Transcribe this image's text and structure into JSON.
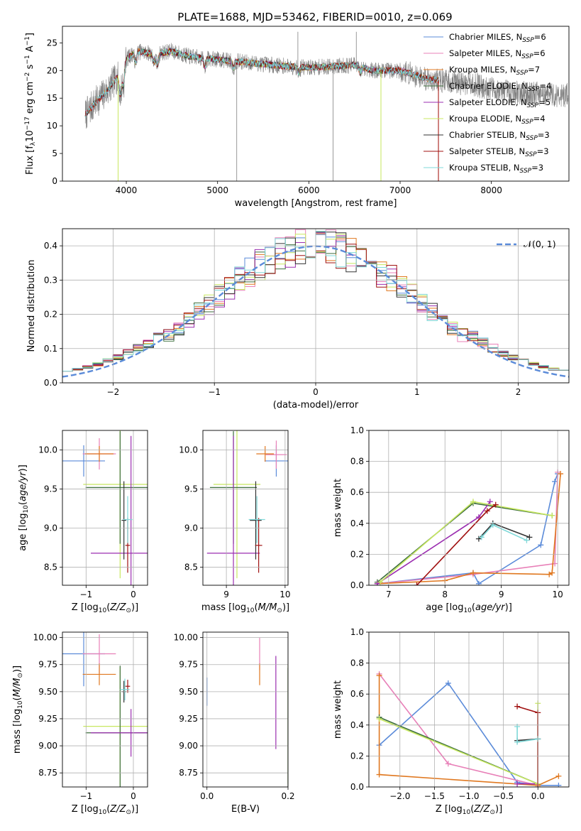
{
  "figure_title": "PLATE=1688, MJD=53462, FIBERID=0010, z=0.069",
  "colors": {
    "chabrier_miles": "#5b8bd9",
    "salpeter_miles": "#e880b8",
    "kroupa_miles": "#e07820",
    "chabrier_elodie": "#3d6e3d",
    "salpeter_elodie": "#9b2eb0",
    "kroupa_elodie": "#c8e860",
    "chabrier_stelib": "#333333",
    "salpeter_stelib": "#a01010",
    "kroupa_stelib": "#7fd8d8",
    "data": "#808080",
    "gaussian": "#5b8bd9"
  },
  "chart_data": [
    {
      "id": "spectrum",
      "type": "line",
      "title": "PLATE=1688, MJD=53462, FIBERID=0010, z=0.069",
      "xlabel": "wavelength [Angstrom, rest frame]",
      "ylabel": "Flux [f_λ 10^-17 erg cm^-2 s^-1 A^-1]",
      "xlim": [
        3300,
        8850
      ],
      "ylim": [
        0,
        28
      ],
      "xticks": [
        4000,
        5000,
        6000,
        7000,
        8000
      ],
      "yticks": [
        0,
        5,
        10,
        15,
        20,
        25
      ],
      "legend_position": "top-right",
      "legend": [
        {
          "label": "Chabrier MILES, N",
          "sub": "SSP",
          "value": "=6"
        },
        {
          "label": "Salpeter MILES, N",
          "sub": "SSP",
          "value": "=6"
        },
        {
          "label": "Kroupa MILES, N",
          "sub": "SSP",
          "value": "=7"
        },
        {
          "label": "Chabrier ELODIE, N",
          "sub": "SSP",
          "value": "=4"
        },
        {
          "label": "Salpeter ELODIE, N",
          "sub": "SSP",
          "value": "=5"
        },
        {
          "label": "Kroupa ELODIE, N",
          "sub": "SSP",
          "value": "=4"
        },
        {
          "label": "Chabrier STELIB, N",
          "sub": "SSP",
          "value": "=3"
        },
        {
          "label": "Salpeter STELIB, N",
          "sub": "SSP",
          "value": "=3"
        },
        {
          "label": "Kroupa STELIB, N",
          "sub": "SSP",
          "value": "=3"
        }
      ],
      "continuum_points": [
        [
          3550,
          12
        ],
        [
          3650,
          14
        ],
        [
          3800,
          16.5
        ],
        [
          3950,
          20
        ],
        [
          4000,
          22
        ],
        [
          4100,
          23.5
        ],
        [
          4300,
          23
        ],
        [
          4500,
          23.5
        ],
        [
          4700,
          22.5
        ],
        [
          5000,
          22
        ],
        [
          5300,
          21.5
        ],
        [
          5600,
          21
        ],
        [
          6000,
          20.5
        ],
        [
          6500,
          21
        ],
        [
          6700,
          20
        ],
        [
          7000,
          20
        ],
        [
          7300,
          18.5
        ],
        [
          7800,
          17.5
        ],
        [
          8200,
          16
        ],
        [
          8850,
          15.5
        ]
      ]
    },
    {
      "id": "residuals",
      "type": "line",
      "xlabel": "(data-model)/error",
      "ylabel": "Normed distribution",
      "xlim": [
        -2.5,
        2.5
      ],
      "ylim": [
        0,
        0.45
      ],
      "xticks": [
        -2,
        -1,
        0,
        1,
        2
      ],
      "yticks": [
        0.0,
        0.1,
        0.2,
        0.3,
        0.4
      ],
      "legend_position": "top-right",
      "legend": [
        {
          "label": "𝒩(0, 1)"
        }
      ],
      "grid": true
    },
    {
      "id": "age_vs_Z",
      "type": "scatter",
      "xlabel": "Z [log10(Z/Z⊙)]",
      "ylabel": "age [log10(age/yr)]",
      "xlim": [
        -1.5,
        0.3
      ],
      "ylim": [
        8.27,
        10.25
      ],
      "xticks": [
        -1,
        0
      ],
      "yticks": [
        8.5,
        9.0,
        9.5,
        10.0
      ],
      "grid": true,
      "points": [
        {
          "key": "chabrier_miles",
          "x": -1.05,
          "xerr": 0.45,
          "y": 9.86,
          "yerr": 0.2
        },
        {
          "key": "salpeter_miles",
          "x": -0.72,
          "xerr": 0.35,
          "y": 9.95,
          "yerr": 0.2
        },
        {
          "key": "kroupa_miles",
          "x": -0.72,
          "xerr": 0.3,
          "y": 9.95,
          "yerr": 0.1
        },
        {
          "key": "kroupa_elodie",
          "x": -0.28,
          "xerr": 0.78,
          "y": 9.56,
          "yerr": 1.2
        },
        {
          "key": "chabrier_elodie",
          "x": -0.28,
          "xerr": 0.73,
          "y": 9.52,
          "yerr": 0.72
        },
        {
          "key": "salpeter_elodie",
          "x": -0.05,
          "xerr": 0.85,
          "y": 8.68,
          "yerr": 1.5
        },
        {
          "key": "chabrier_stelib",
          "x": -0.2,
          "xerr": 0.05,
          "y": 9.1,
          "yerr": 0.5
        },
        {
          "key": "salpeter_stelib",
          "x": -0.12,
          "xerr": 0.05,
          "y": 8.78,
          "yerr": 0.35
        },
        {
          "key": "kroupa_stelib",
          "x": -0.12,
          "xerr": 0.1,
          "y": 9.11,
          "yerr": 0.3
        }
      ]
    },
    {
      "id": "age_vs_mass",
      "type": "scatter",
      "xlabel": "mass [log10(M/M⊙)]",
      "ylabel": "",
      "xlim": [
        8.6,
        10.05
      ],
      "ylim": [
        8.27,
        10.25
      ],
      "xticks": [
        9,
        10
      ],
      "yticks": [
        8.5,
        9.0,
        9.5,
        10.0
      ],
      "grid": true,
      "points": [
        {
          "key": "chabrier_miles",
          "x": 9.85,
          "xerr": 0.2,
          "y": 9.86,
          "yerr": 0.2
        },
        {
          "key": "salpeter_miles",
          "x": 9.85,
          "xerr": 0.18,
          "y": 9.94,
          "yerr": 0.18
        },
        {
          "key": "kroupa_miles",
          "x": 9.66,
          "xerr": 0.15,
          "y": 9.95,
          "yerr": 0.1
        },
        {
          "key": "kroupa_elodie",
          "x": 9.18,
          "xerr": 0.4,
          "y": 9.56,
          "yerr": 1.2
        },
        {
          "key": "chabrier_elodie",
          "x": 9.12,
          "xerr": 0.4,
          "y": 9.52,
          "yerr": 0.72
        },
        {
          "key": "salpeter_elodie",
          "x": 9.12,
          "xerr": 0.45,
          "y": 8.68,
          "yerr": 1.5
        },
        {
          "key": "chabrier_stelib",
          "x": 9.5,
          "xerr": 0.1,
          "y": 9.1,
          "yerr": 0.5
        },
        {
          "key": "salpeter_stelib",
          "x": 9.55,
          "xerr": 0.06,
          "y": 8.78,
          "yerr": 0.35
        },
        {
          "key": "kroupa_stelib",
          "x": 9.52,
          "xerr": 0.14,
          "y": 9.11,
          "yerr": 0.3
        }
      ]
    },
    {
      "id": "mass_weight_vs_age",
      "type": "line",
      "xlabel": "age [log10(age/yr)]",
      "ylabel": "mass weight",
      "xlim": [
        6.65,
        10.2
      ],
      "ylim": [
        0,
        1.0
      ],
      "xticks": [
        7,
        8,
        9,
        10
      ],
      "yticks": [
        0.0,
        0.2,
        0.4,
        0.6,
        0.8,
        1.0
      ],
      "grid": true,
      "series": [
        {
          "key": "chabrier_miles",
          "x": [
            6.8,
            8.5,
            8.6,
            9.7,
            9.95,
            10.0
          ],
          "y": [
            0.01,
            0.08,
            0.01,
            0.26,
            0.67,
            0.72
          ]
        },
        {
          "key": "salpeter_miles",
          "x": [
            6.8,
            8.5,
            9.95,
            10.0
          ],
          "y": [
            0.01,
            0.07,
            0.14,
            0.73
          ]
        },
        {
          "key": "kroupa_miles",
          "x": [
            6.8,
            8.0,
            8.5,
            9.85,
            9.9,
            10.05
          ],
          "y": [
            0.01,
            0.03,
            0.08,
            0.07,
            0.08,
            0.72
          ]
        },
        {
          "key": "chabrier_elodie",
          "x": [
            6.8,
            8.5,
            9.9
          ],
          "y": [
            0.02,
            0.53,
            0.45
          ]
        },
        {
          "key": "salpeter_elodie",
          "x": [
            6.8,
            8.6,
            8.8
          ],
          "y": [
            0.01,
            0.44,
            0.54
          ]
        },
        {
          "key": "kroupa_elodie",
          "x": [
            6.85,
            8.5,
            9.9
          ],
          "y": [
            0.02,
            0.54,
            0.45
          ]
        },
        {
          "key": "chabrier_stelib",
          "x": [
            8.6,
            8.85,
            9.5
          ],
          "y": [
            0.3,
            0.4,
            0.31
          ]
        },
        {
          "key": "salpeter_stelib",
          "x": [
            7.5,
            8.75,
            8.9
          ],
          "y": [
            0.0,
            0.48,
            0.52
          ]
        },
        {
          "key": "kroupa_stelib",
          "x": [
            8.65,
            8.85,
            9.45
          ],
          "y": [
            0.31,
            0.39,
            0.29
          ]
        }
      ]
    },
    {
      "id": "mass_vs_Z",
      "type": "scatter",
      "xlabel": "Z [log10(Z/Z⊙)]",
      "ylabel": "mass [log10(M/M⊙)]",
      "xlim": [
        -1.5,
        0.3
      ],
      "ylim": [
        8.62,
        10.05
      ],
      "xticks": [
        -1,
        0
      ],
      "yticks": [
        8.75,
        9.0,
        9.25,
        9.5,
        9.75,
        10.0
      ],
      "grid": true,
      "points": [
        {
          "key": "chabrier_miles",
          "x": -1.05,
          "xerr": 0.45,
          "y": 9.85,
          "yerr": 0.3
        },
        {
          "key": "salpeter_miles",
          "x": -0.72,
          "xerr": 0.35,
          "y": 9.85,
          "yerr": 0.18
        },
        {
          "key": "kroupa_miles",
          "x": -0.72,
          "xerr": 0.35,
          "y": 9.66,
          "yerr": 0.1
        },
        {
          "key": "kroupa_elodie",
          "x": -0.28,
          "xerr": 0.78,
          "y": 9.18,
          "yerr": 0.55
        },
        {
          "key": "chabrier_elodie",
          "x": -0.28,
          "xerr": 0.73,
          "y": 9.12,
          "yerr": 0.62
        },
        {
          "key": "salpeter_elodie",
          "x": -0.05,
          "xerr": 0.85,
          "y": 9.12,
          "yerr": 0.22
        },
        {
          "key": "chabrier_stelib",
          "x": -0.2,
          "xerr": 0.05,
          "y": 9.5,
          "yerr": 0.1
        },
        {
          "key": "salpeter_stelib",
          "x": -0.12,
          "xerr": 0.05,
          "y": 9.55,
          "yerr": 0.06
        },
        {
          "key": "kroupa_stelib",
          "x": -0.18,
          "xerr": 0.1,
          "y": 9.52,
          "yerr": 0.1
        }
      ]
    },
    {
      "id": "mass_vs_ebv",
      "type": "scatter",
      "xlabel": "E(B-V)",
      "ylabel": "",
      "xlim": [
        -0.01,
        0.2
      ],
      "ylim": [
        8.62,
        10.05
      ],
      "xticks": [
        0.0,
        0.2
      ],
      "yticks": [
        8.75,
        9.0,
        9.25,
        9.5,
        9.75,
        10.0
      ],
      "grid": true,
      "points": [
        {
          "key": "chabrier_miles",
          "x": 0.0,
          "y": 9.5,
          "yerr": 0.13
        },
        {
          "key": "salpeter_miles",
          "x": 0.13,
          "y": 9.85,
          "yerr": 0.15
        },
        {
          "key": "kroupa_miles",
          "x": 0.13,
          "y": 9.66,
          "yerr": 0.1
        },
        {
          "key": "salpeter_elodie",
          "x": 0.17,
          "y": 9.4,
          "yerr": 0.43
        },
        {
          "key": "kroupa_elodie",
          "x": 0.2,
          "y": 9.2,
          "yerr": 0.55
        },
        {
          "key": "chabrier_elodie",
          "x": 0.2,
          "y": 9.1,
          "yerr": 0.62
        }
      ]
    },
    {
      "id": "mass_weight_vs_Z",
      "type": "line",
      "xlabel": "Z [log10(Z/Z⊙)]",
      "ylabel": "mass weight",
      "xlim": [
        -2.45,
        0.45
      ],
      "ylim": [
        0,
        1.0
      ],
      "xticks": [
        -2.0,
        -1.5,
        -1.0,
        -0.5,
        0.0
      ],
      "yticks": [
        0.0,
        0.2,
        0.4,
        0.6,
        0.8,
        1.0
      ],
      "grid": true,
      "series": [
        {
          "key": "chabrier_miles",
          "x": [
            -2.3,
            -1.3,
            -0.3,
            0.0,
            0.3
          ],
          "y": [
            0.27,
            0.67,
            0.03,
            0.01,
            0.01
          ]
        },
        {
          "key": "salpeter_miles",
          "x": [
            -2.3,
            -1.3,
            0.0
          ],
          "y": [
            0.73,
            0.15,
            0.01
          ]
        },
        {
          "key": "kroupa_miles",
          "x": [
            -2.3,
            -2.3,
            0.0,
            0.3
          ],
          "y": [
            0.72,
            0.08,
            0.01,
            0.07
          ]
        },
        {
          "key": "chabrier_elodie",
          "x": [
            -2.3,
            0.0
          ],
          "y": [
            0.45,
            0.02
          ]
        },
        {
          "key": "salpeter_elodie",
          "x": [
            -0.3,
            0.0
          ],
          "y": [
            0.02,
            0.02
          ]
        },
        {
          "key": "kroupa_elodie",
          "x": [
            -2.3,
            0.0,
            0.0
          ],
          "y": [
            0.44,
            0.02,
            0.54
          ]
        },
        {
          "key": "chabrier_stelib",
          "x": [
            -0.3,
            0.0
          ],
          "y": [
            0.3,
            0.31
          ]
        },
        {
          "key": "salpeter_stelib",
          "x": [
            -0.3,
            0.0,
            0.0
          ],
          "y": [
            0.52,
            0.48,
            0.0
          ]
        },
        {
          "key": "kroupa_stelib",
          "x": [
            -0.3,
            -0.3,
            0.0
          ],
          "y": [
            0.39,
            0.29,
            0.31
          ]
        }
      ]
    }
  ]
}
